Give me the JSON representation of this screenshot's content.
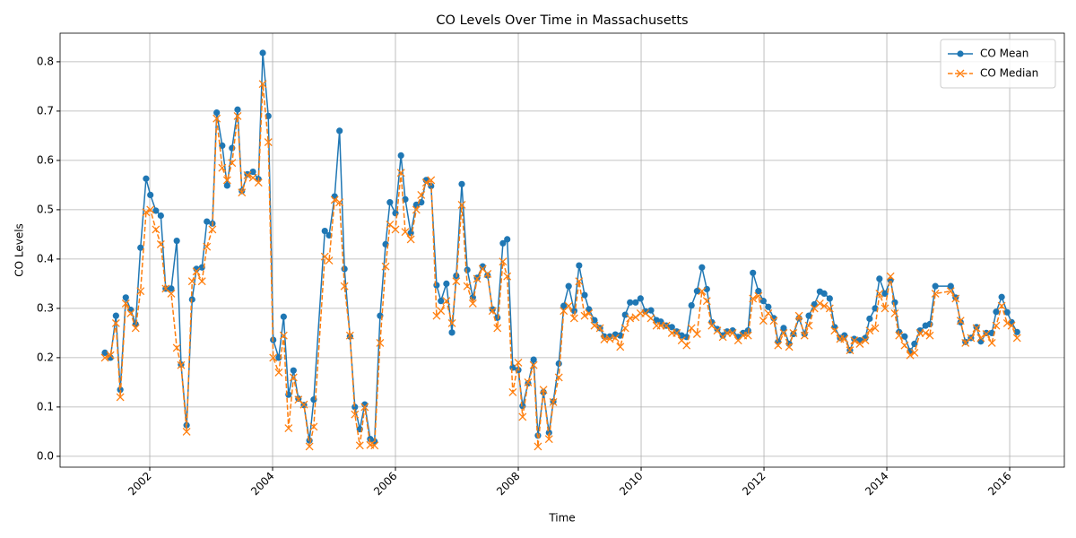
{
  "chart_data": {
    "type": "line",
    "title": "CO Levels Over Time in Massachusetts",
    "x_label": "Time",
    "y_label": "CO Levels",
    "x": [
      2001.27,
      2001.36,
      2001.45,
      2001.52,
      2001.61,
      2001.69,
      2001.77,
      2001.85,
      2001.94,
      2002.01,
      2002.1,
      2002.18,
      2002.26,
      2002.35,
      2002.44,
      2002.51,
      2002.6,
      2002.69,
      2002.76,
      2002.85,
      2002.93,
      2003.02,
      2003.09,
      2003.18,
      2003.26,
      2003.34,
      2003.43,
      2003.5,
      2003.59,
      2003.68,
      2003.77,
      2003.84,
      2003.93,
      2004.01,
      2004.1,
      2004.18,
      2004.26,
      2004.34,
      2004.42,
      2004.51,
      2004.6,
      2004.67,
      2004.85,
      2004.92,
      2005.01,
      2005.09,
      2005.17,
      2005.26,
      2005.34,
      2005.42,
      2005.5,
      2005.59,
      2005.66,
      2005.75,
      2005.84,
      2005.91,
      2006.0,
      2006.09,
      2006.16,
      2006.25,
      2006.34,
      2006.42,
      2006.5,
      2006.58,
      2006.67,
      2006.74,
      2006.83,
      2006.92,
      2006.99,
      2007.08,
      2007.17,
      2007.26,
      2007.33,
      2007.42,
      2007.5,
      2007.58,
      2007.66,
      2007.75,
      2007.82,
      2007.91,
      2008.0,
      2008.07,
      2008.16,
      2008.25,
      2008.32,
      2008.41,
      2008.5,
      2008.57,
      2008.66,
      2008.74,
      2008.82,
      2008.91,
      2008.99,
      2009.08,
      2009.15,
      2009.24,
      2009.33,
      2009.4,
      2009.49,
      2009.58,
      2009.66,
      2009.74,
      2009.82,
      2009.91,
      2009.99,
      2010.07,
      2010.16,
      2010.25,
      2010.32,
      2010.41,
      2010.5,
      2010.58,
      2010.66,
      2010.74,
      2010.82,
      2010.91,
      2010.99,
      2011.07,
      2011.15,
      2011.24,
      2011.33,
      2011.4,
      2011.49,
      2011.58,
      2011.66,
      2011.74,
      2011.82,
      2011.91,
      2011.99,
      2012.07,
      2012.16,
      2012.23,
      2012.32,
      2012.41,
      2012.48,
      2012.57,
      2012.66,
      2012.73,
      2012.82,
      2012.91,
      2012.98,
      2013.07,
      2013.15,
      2013.24,
      2013.31,
      2013.4,
      2013.47,
      2013.56,
      2013.65,
      2013.72,
      2013.81,
      2013.88,
      2013.97,
      2014.06,
      2014.13,
      2014.2,
      2014.29,
      2014.38,
      2014.45,
      2014.54,
      2014.63,
      2014.7,
      2014.79,
      2015.04,
      2015.12,
      2015.2,
      2015.28,
      2015.37,
      2015.46,
      2015.53,
      2015.62,
      2015.71,
      2015.78,
      2015.87,
      2015.96,
      2016.03,
      2016.12
    ],
    "series": [
      {
        "name": "CO Mean",
        "color": "#1f77b4",
        "marker": "circle",
        "linestyle": "solid",
        "values": [
          0.21,
          0.2,
          0.285,
          0.135,
          0.322,
          0.297,
          0.268,
          0.423,
          0.563,
          0.53,
          0.498,
          0.488,
          0.34,
          0.34,
          0.437,
          0.186,
          0.063,
          0.318,
          0.38,
          0.383,
          0.476,
          0.472,
          0.697,
          0.63,
          0.549,
          0.625,
          0.703,
          0.538,
          0.572,
          0.577,
          0.562,
          0.818,
          0.69,
          0.236,
          0.2,
          0.283,
          0.125,
          0.174,
          0.117,
          0.104,
          0.032,
          0.115,
          0.457,
          0.448,
          0.527,
          0.66,
          0.38,
          0.243,
          0.1,
          0.055,
          0.105,
          0.035,
          0.03,
          0.285,
          0.43,
          0.515,
          0.493,
          0.61,
          0.521,
          0.453,
          0.51,
          0.515,
          0.56,
          0.548,
          0.347,
          0.315,
          0.35,
          0.251,
          0.366,
          0.552,
          0.378,
          0.322,
          0.362,
          0.385,
          0.367,
          0.298,
          0.281,
          0.432,
          0.44,
          0.18,
          0.175,
          0.102,
          0.148,
          0.196,
          0.042,
          0.13,
          0.048,
          0.111,
          0.188,
          0.305,
          0.345,
          0.295,
          0.387,
          0.327,
          0.298,
          0.276,
          0.26,
          0.243,
          0.243,
          0.247,
          0.245,
          0.287,
          0.312,
          0.312,
          0.32,
          0.294,
          0.296,
          0.276,
          0.273,
          0.265,
          0.262,
          0.253,
          0.245,
          0.242,
          0.306,
          0.335,
          0.383,
          0.339,
          0.272,
          0.258,
          0.245,
          0.253,
          0.255,
          0.242,
          0.25,
          0.255,
          0.372,
          0.335,
          0.315,
          0.303,
          0.28,
          0.232,
          0.26,
          0.228,
          0.248,
          0.28,
          0.248,
          0.285,
          0.308,
          0.334,
          0.33,
          0.32,
          0.262,
          0.24,
          0.245,
          0.215,
          0.238,
          0.235,
          0.24,
          0.279,
          0.3,
          0.36,
          0.33,
          0.357,
          0.312,
          0.252,
          0.243,
          0.213,
          0.228,
          0.255,
          0.265,
          0.268,
          0.345,
          0.345,
          0.322,
          0.272,
          0.232,
          0.24,
          0.262,
          0.233,
          0.25,
          0.25,
          0.293,
          0.323,
          0.292,
          0.272,
          0.252
        ]
      },
      {
        "name": "CO Median",
        "color": "#ff7f0e",
        "marker": "x",
        "linestyle": "dashed",
        "values": [
          0.2,
          0.205,
          0.27,
          0.12,
          0.31,
          0.29,
          0.26,
          0.335,
          0.495,
          0.5,
          0.46,
          0.43,
          0.34,
          0.33,
          0.22,
          0.185,
          0.05,
          0.355,
          0.375,
          0.355,
          0.425,
          0.46,
          0.685,
          0.585,
          0.56,
          0.595,
          0.69,
          0.535,
          0.57,
          0.565,
          0.555,
          0.755,
          0.637,
          0.2,
          0.17,
          0.245,
          0.057,
          0.16,
          0.115,
          0.105,
          0.02,
          0.06,
          0.405,
          0.397,
          0.52,
          0.515,
          0.345,
          0.245,
          0.085,
          0.022,
          0.1,
          0.023,
          0.022,
          0.23,
          0.385,
          0.47,
          0.46,
          0.575,
          0.455,
          0.44,
          0.5,
          0.53,
          0.555,
          0.56,
          0.285,
          0.295,
          0.315,
          0.27,
          0.355,
          0.51,
          0.345,
          0.31,
          0.36,
          0.38,
          0.37,
          0.295,
          0.26,
          0.395,
          0.365,
          0.13,
          0.19,
          0.08,
          0.15,
          0.185,
          0.02,
          0.135,
          0.035,
          0.11,
          0.16,
          0.295,
          0.305,
          0.28,
          0.355,
          0.285,
          0.29,
          0.265,
          0.26,
          0.237,
          0.238,
          0.24,
          0.222,
          0.26,
          0.28,
          0.282,
          0.29,
          0.29,
          0.28,
          0.265,
          0.265,
          0.265,
          0.25,
          0.25,
          0.235,
          0.225,
          0.26,
          0.248,
          0.335,
          0.315,
          0.265,
          0.255,
          0.242,
          0.25,
          0.25,
          0.235,
          0.245,
          0.245,
          0.32,
          0.325,
          0.275,
          0.29,
          0.275,
          0.225,
          0.25,
          0.222,
          0.25,
          0.285,
          0.245,
          0.265,
          0.3,
          0.31,
          0.305,
          0.3,
          0.255,
          0.238,
          0.238,
          0.215,
          0.235,
          0.228,
          0.235,
          0.255,
          0.26,
          0.33,
          0.3,
          0.365,
          0.29,
          0.245,
          0.225,
          0.205,
          0.21,
          0.25,
          0.25,
          0.245,
          0.33,
          0.335,
          0.32,
          0.275,
          0.23,
          0.24,
          0.26,
          0.24,
          0.248,
          0.23,
          0.265,
          0.305,
          0.27,
          0.265,
          0.24
        ]
      }
    ],
    "xlim": [
      2000.54,
      2016.89
    ],
    "xticks": [
      2002,
      2004,
      2006,
      2008,
      2010,
      2012,
      2014,
      2016
    ],
    "ylim": [
      -0.022,
      0.858
    ],
    "yticks": [
      {
        "value": 0,
        "label": "0.0"
      },
      0.1,
      0.2,
      0.3,
      0.4,
      0.5,
      0.6,
      0.7,
      0.8
    ],
    "grid": true,
    "legend": "upper right"
  }
}
